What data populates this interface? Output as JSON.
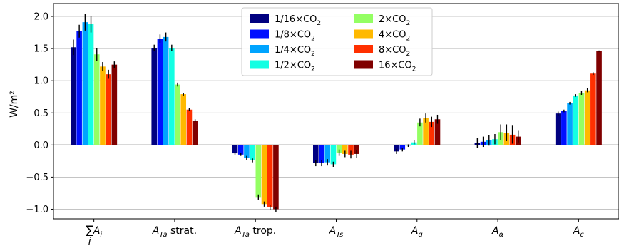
{
  "chart_data": {
    "type": "bar",
    "ylabel": "W/m²",
    "ylim": [
      -1.15,
      2.2
    ],
    "yticks": [
      -1.0,
      -0.5,
      0.0,
      0.5,
      1.0,
      1.5,
      2.0
    ],
    "ytick_labels": [
      "−1.0",
      "−0.5",
      "0.0",
      "0.5",
      "1.0",
      "1.5",
      "2.0"
    ],
    "grid": "horizontal",
    "legend_position": "top-center",
    "categories": [
      {
        "main": "∑A",
        "sub": "i",
        "below": "i"
      },
      {
        "main": "A",
        "sub": "Ta",
        "suffix": " strat."
      },
      {
        "main": "A",
        "sub": "Ta",
        "suffix": " trop."
      },
      {
        "main": "A",
        "sub": "Ts"
      },
      {
        "main": "A",
        "sub": "q"
      },
      {
        "main": "A",
        "sub": "α"
      },
      {
        "main": "A",
        "sub": "c"
      }
    ],
    "series": [
      {
        "name": "1/16×CO",
        "name_sub": "2",
        "color": "#000080",
        "values": [
          1.52,
          1.51,
          -0.13,
          -0.28,
          -0.1,
          0.03,
          0.49
        ],
        "errors": [
          0.12,
          0.05,
          0.02,
          0.05,
          0.04,
          0.08,
          0.03
        ]
      },
      {
        "name": "1/8×CO",
        "name_sub": "2",
        "color": "#0010ff",
        "values": [
          1.77,
          1.65,
          -0.15,
          -0.28,
          -0.07,
          0.05,
          0.53
        ],
        "errors": [
          0.1,
          0.07,
          0.02,
          0.05,
          0.03,
          0.08,
          0.02
        ]
      },
      {
        "name": "1/4×CO",
        "name_sub": "2",
        "color": "#00a4ff",
        "values": [
          1.91,
          1.68,
          -0.2,
          -0.27,
          -0.01,
          0.07,
          0.65
        ],
        "errors": [
          0.13,
          0.07,
          0.03,
          0.05,
          0.02,
          0.08,
          0.02
        ]
      },
      {
        "name": "1/2×CO",
        "name_sub": "2",
        "color": "#13ffe3",
        "values": [
          1.88,
          1.51,
          -0.24,
          -0.3,
          0.04,
          0.09,
          0.77
        ],
        "errors": [
          0.13,
          0.05,
          0.03,
          0.04,
          0.03,
          0.08,
          0.02
        ]
      },
      {
        "name": "2×CO",
        "name_sub": "2",
        "color": "#94ff63",
        "values": [
          1.41,
          0.94,
          -0.81,
          -0.12,
          0.35,
          0.2,
          0.81
        ],
        "errors": [
          0.1,
          0.03,
          0.04,
          0.05,
          0.06,
          0.12,
          0.03
        ]
      },
      {
        "name": "4×CO",
        "name_sub": "2",
        "color": "#ffb900",
        "values": [
          1.22,
          0.79,
          -0.92,
          -0.14,
          0.42,
          0.19,
          0.85
        ],
        "errors": [
          0.07,
          0.02,
          0.04,
          0.05,
          0.07,
          0.13,
          0.03
        ]
      },
      {
        "name": "8×CO",
        "name_sub": "2",
        "color": "#ff3000",
        "values": [
          1.1,
          0.55,
          -0.97,
          -0.15,
          0.36,
          0.16,
          1.11
        ],
        "errors": [
          0.07,
          0.02,
          0.04,
          0.06,
          0.08,
          0.14,
          0.02
        ]
      },
      {
        "name": "16×CO",
        "name_sub": "2",
        "color": "#800000",
        "values": [
          1.25,
          0.38,
          -1.0,
          -0.14,
          0.4,
          0.13,
          1.46
        ],
        "errors": [
          0.05,
          0.02,
          0.04,
          0.06,
          0.07,
          0.09,
          0.01
        ]
      }
    ]
  }
}
